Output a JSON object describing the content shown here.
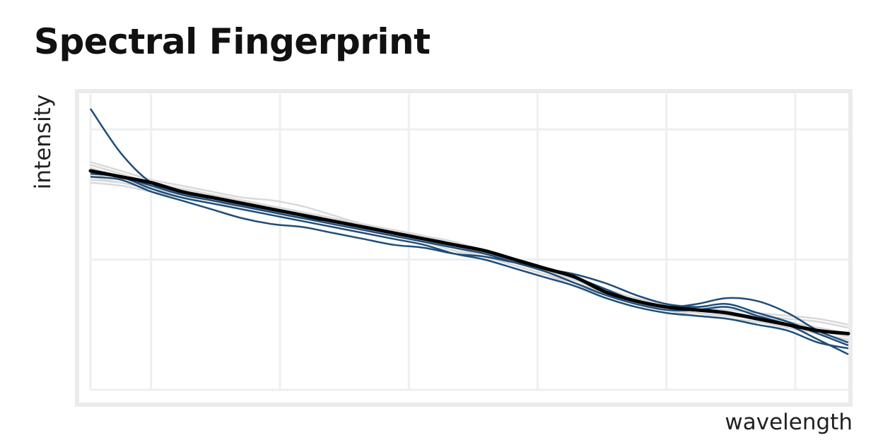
{
  "chart_data": {
    "type": "line",
    "title": "Spectral Fingerprint",
    "xlabel": "wavelength",
    "ylabel": "intensity",
    "grid": true,
    "legend": "none",
    "xlim": [
      0,
      100
    ],
    "ylim": [
      0,
      100
    ],
    "x": [
      0,
      4,
      8,
      12,
      16,
      20,
      24,
      28,
      32,
      36,
      40,
      44,
      48,
      52,
      56,
      60,
      64,
      68,
      72,
      76,
      80,
      84,
      88,
      92,
      96,
      100
    ],
    "colors": {
      "background_series": "#d9d9d9",
      "highlight_series": "#1f4e79",
      "mean_series": "#000000"
    },
    "background_series": [
      {
        "values": [
          77,
          74,
          71,
          69,
          67,
          65,
          64,
          62,
          59,
          56,
          54,
          52,
          50,
          47,
          44,
          41,
          38,
          34,
          30,
          28,
          26,
          25,
          24,
          22,
          20,
          18
        ]
      },
      {
        "values": [
          72,
          70,
          68,
          66,
          64,
          62,
          60,
          58,
          56,
          54,
          52,
          50,
          47,
          45,
          42,
          39,
          36,
          33,
          29,
          27,
          25,
          24,
          23,
          21,
          19,
          17
        ]
      },
      {
        "values": [
          75,
          72,
          69,
          67,
          65,
          64,
          62,
          60,
          58,
          55,
          53,
          51,
          49,
          46,
          43,
          40,
          37,
          33,
          30,
          28,
          27,
          26,
          25,
          24,
          23,
          21
        ]
      },
      {
        "values": [
          70,
          69,
          67,
          65,
          63,
          62,
          61,
          59,
          57,
          54,
          52,
          50,
          48,
          46,
          43,
          40,
          37,
          33,
          30,
          27,
          26,
          25,
          24,
          23,
          21,
          19
        ]
      },
      {
        "values": [
          74,
          72,
          70,
          68,
          66,
          64,
          62,
          60,
          57,
          55,
          53,
          51,
          49,
          46,
          44,
          41,
          38,
          34,
          31,
          29,
          28,
          27,
          26,
          25,
          24,
          22
        ]
      },
      {
        "values": [
          76,
          73,
          70,
          68,
          66,
          64,
          62,
          60,
          58,
          56,
          54,
          52,
          49,
          46,
          43,
          40,
          36,
          33,
          30,
          28,
          26,
          25,
          24,
          22,
          21,
          19
        ]
      },
      {
        "values": [
          71,
          70,
          68,
          66,
          64,
          62,
          60,
          58,
          56,
          54,
          52,
          50,
          48,
          45,
          42,
          39,
          35,
          32,
          29,
          27,
          25,
          24,
          23,
          22,
          20,
          18
        ]
      }
    ],
    "highlight_series": [
      {
        "values": [
          95,
          80,
          70,
          66,
          64,
          62,
          60,
          58,
          56,
          54,
          52,
          50,
          48,
          46,
          43,
          40,
          36,
          32,
          29,
          27,
          27,
          28,
          25,
          22,
          17,
          12
        ]
      },
      {
        "values": [
          74,
          72,
          68,
          65,
          63,
          61,
          59,
          57,
          55,
          53,
          51,
          49,
          46,
          44,
          41,
          38,
          35,
          31,
          28,
          26,
          25,
          24,
          22,
          20,
          16,
          14
        ]
      },
      {
        "values": [
          72,
          71,
          67,
          64,
          61,
          58,
          56,
          55,
          53,
          51,
          49,
          48,
          46,
          45,
          43,
          41,
          38,
          34,
          30,
          28,
          29,
          31,
          30,
          26,
          20,
          16
        ]
      },
      {
        "values": [
          73,
          72,
          69,
          66,
          64,
          62,
          60,
          58,
          57,
          55,
          53,
          51,
          49,
          47,
          44,
          41,
          39,
          36,
          32,
          29,
          28,
          29,
          26,
          23,
          19,
          15
        ]
      }
    ],
    "mean_series": {
      "values": [
        74,
        72,
        70,
        67,
        65,
        63,
        61,
        59,
        57,
        55,
        53,
        51,
        49,
        47,
        44,
        41,
        38,
        33,
        30,
        28,
        27,
        26,
        24,
        22,
        20,
        19
      ]
    }
  }
}
